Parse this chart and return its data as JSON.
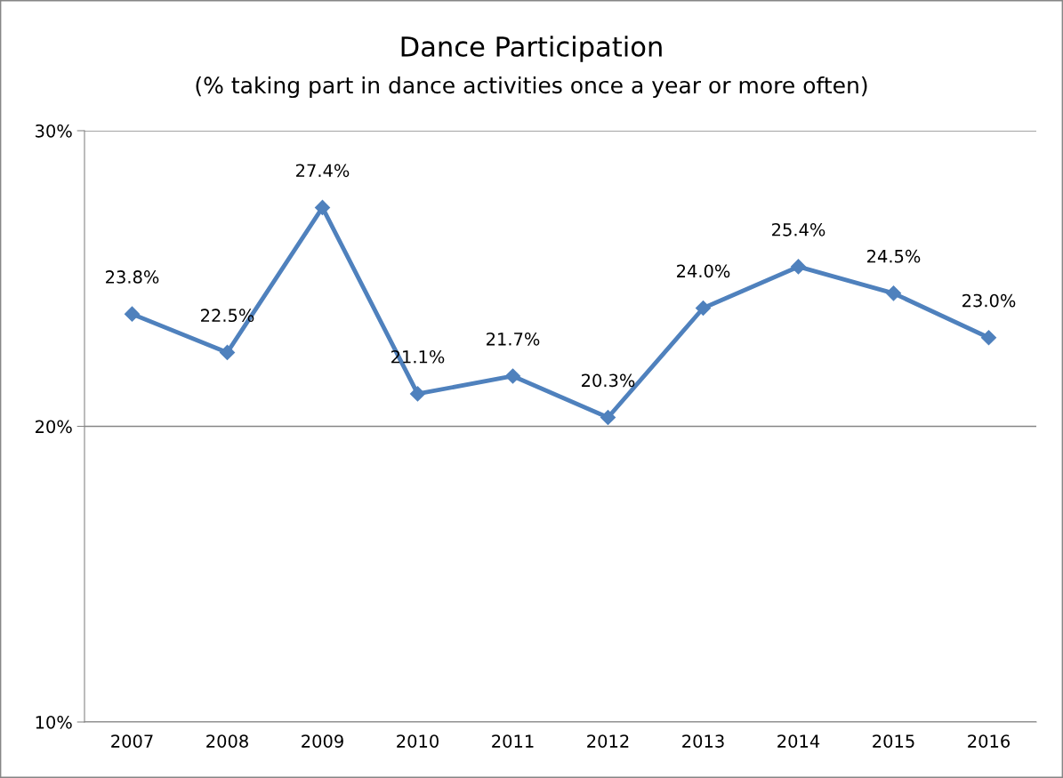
{
  "chart_data": {
    "type": "line",
    "title": "Dance Participation",
    "subtitle": "(% taking part in dance activities once a year or more often)",
    "categories": [
      "2007",
      "2008",
      "2009",
      "2010",
      "2011",
      "2012",
      "2013",
      "2014",
      "2015",
      "2016"
    ],
    "series": [
      {
        "color": "#4f81bd",
        "values": [
          23.8,
          22.5,
          27.4,
          21.1,
          21.7,
          20.3,
          24.0,
          25.4,
          24.5,
          23.0
        ],
        "value_labels": [
          "23.8%",
          "22.5%",
          "27.4%",
          "21.1%",
          "21.7%",
          "20.3%",
          "24.0%",
          "25.4%",
          "24.5%",
          "23.0%"
        ]
      }
    ],
    "ylim": [
      10,
      30
    ],
    "yticks": [
      {
        "value": 10,
        "label": "10%"
      },
      {
        "value": 20,
        "label": "20%"
      },
      {
        "value": 30,
        "label": "30%"
      }
    ],
    "grid": "y",
    "legend": false,
    "marker": "diamond",
    "line_style": "solid"
  }
}
